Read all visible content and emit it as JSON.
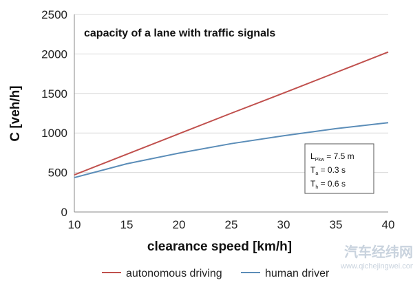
{
  "chart_data": {
    "type": "line",
    "title": "capacity of a lane with traffic signals",
    "xlabel": "clearance speed [km/h]",
    "ylabel": "C [veh/h]",
    "xlim": [
      10,
      40
    ],
    "ylim": [
      0,
      2500
    ],
    "xticks": [
      "10",
      "15",
      "20",
      "25",
      "30",
      "35",
      "40"
    ],
    "yticks": [
      "0",
      "500",
      "1000",
      "1500",
      "2000",
      "2500"
    ],
    "grid": "horizontal",
    "legend_position": "bottom",
    "series": [
      {
        "name": "autonomous driving",
        "color": "#c0504d",
        "x": [
          10,
          15,
          20,
          25,
          30,
          35,
          40
        ],
        "y": [
          470,
          730,
          990,
          1250,
          1505,
          1765,
          2025
        ]
      },
      {
        "name": "human driver",
        "color": "#5b8db8",
        "x": [
          10,
          15,
          20,
          25,
          30,
          35,
          40
        ],
        "y": [
          435,
          610,
          745,
          865,
          965,
          1055,
          1130
        ]
      }
    ]
  },
  "params": {
    "l_main": "L",
    "l_sub": "Pkw",
    "l_value": " = 7.5 m",
    "ta_main": "T",
    "ta_sub": "a",
    "ta_value": " = 0.3 s",
    "th_main": "T",
    "th_sub": "h",
    "th_value": " = 0.6 s"
  },
  "watermark": {
    "cn": "汽车经纬网",
    "en": "www.qichejingwei.com"
  },
  "colors": {
    "grid": "#d9d9d9",
    "axis": "#888888"
  }
}
